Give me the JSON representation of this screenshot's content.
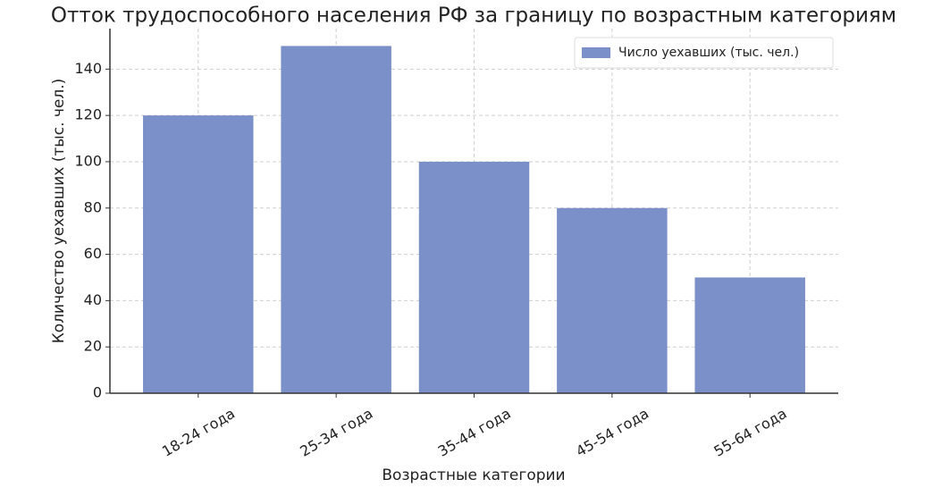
{
  "chart_data": {
    "type": "bar",
    "title": "Отток трудоспособного населения РФ за границу по возрастным категориям",
    "xlabel": "Возрастные категории",
    "ylabel": "Количество уехавших (тыс. чел.)",
    "categories": [
      "18-24 года",
      "25-34 года",
      "35-44 года",
      "45-54 года",
      "55-64 года"
    ],
    "series": [
      {
        "name": "Число уехавших (тыс. чел.)",
        "color": "#7b90c8",
        "values": [
          120,
          150,
          100,
          80,
          50
        ]
      }
    ],
    "ylim": [
      0,
      157.5
    ],
    "yticks": [
      0,
      20,
      40,
      60,
      80,
      100,
      120,
      140
    ],
    "grid": true,
    "legend": "upper right"
  }
}
